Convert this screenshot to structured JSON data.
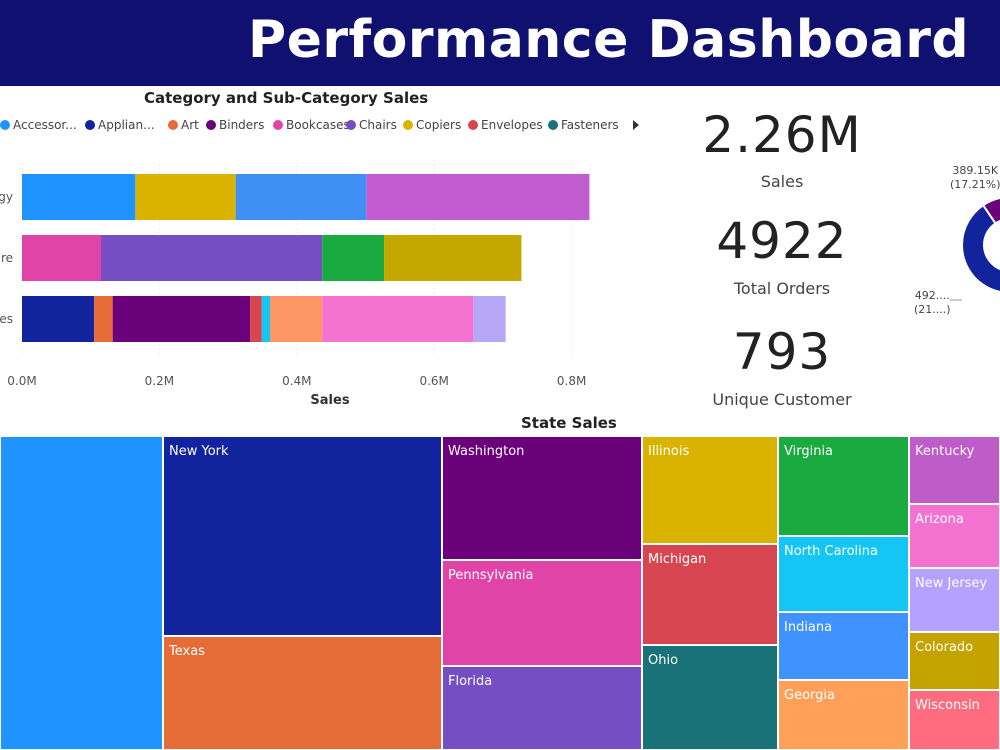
{
  "header": {
    "title": "Performance Dashboard"
  },
  "colors": {
    "header_bg": "#0f1070",
    "accessories": "#1f93ff",
    "appliances": "#12239e",
    "art": "#e66c37",
    "binders": "#6b007b",
    "bookcases": "#e044a7",
    "chairs": "#744ec2",
    "copiers": "#d9b300",
    "envelopes": "#d64550",
    "fasteners": "#197278"
  },
  "bar_panel": {
    "title": "Category and Sub-Category Sales",
    "legend": [
      {
        "label": "Accessor...",
        "color": "#1f93ff"
      },
      {
        "label": "Applian...",
        "color": "#12239e"
      },
      {
        "label": "Art",
        "color": "#e66c37"
      },
      {
        "label": "Binders",
        "color": "#6b007b"
      },
      {
        "label": "Bookcases",
        "color": "#e044a7"
      },
      {
        "label": "Chairs",
        "color": "#744ec2"
      },
      {
        "label": "Copiers",
        "color": "#d9b300"
      },
      {
        "label": "Envelopes",
        "color": "#d64550"
      },
      {
        "label": "Fasteners",
        "color": "#197278"
      }
    ]
  },
  "chart_data": [
    {
      "type": "bar",
      "orientation": "horizontal",
      "stacked": true,
      "title": "Category and Sub-Category Sales",
      "xlabel": "Sales",
      "ylabel": "",
      "xlim": [
        0,
        0.85
      ],
      "x_ticks": [
        "0.0M",
        "0.2M",
        "0.4M",
        "0.6M",
        "0.8M"
      ],
      "x_tick_values": [
        0,
        0.2,
        0.4,
        0.6,
        0.8
      ],
      "categories": [
        "gy",
        "re",
        "es"
      ],
      "bars": [
        {
          "category": "gy",
          "segments": [
            {
              "value": 0.165,
              "color": "#1f93ff"
            },
            {
              "value": 0.146,
              "color": "#d9b300"
            },
            {
              "value": 0.19,
              "color": "#3f8ff5"
            },
            {
              "value": 0.325,
              "color": "#c25cd0"
            }
          ]
        },
        {
          "category": "re",
          "segments": [
            {
              "value": 0.115,
              "color": "#e044a7"
            },
            {
              "value": 0.322,
              "color": "#744ec2"
            },
            {
              "value": 0.09,
              "color": "#1aab40"
            },
            {
              "value": 0.2,
              "color": "#c4a800"
            }
          ]
        },
        {
          "category": "es",
          "segments": [
            {
              "value": 0.105,
              "color": "#12239e"
            },
            {
              "value": 0.027,
              "color": "#e66c37"
            },
            {
              "value": 0.2,
              "color": "#6b007b"
            },
            {
              "value": 0.017,
              "color": "#d64550"
            },
            {
              "value": 0.012,
              "color": "#15c6f4"
            },
            {
              "value": 0.076,
              "color": "#fe9666"
            },
            {
              "value": 0.22,
              "color": "#f472d0"
            },
            {
              "value": 0.047,
              "color": "#b6a8f7"
            }
          ]
        }
      ]
    },
    {
      "type": "pie",
      "subtype": "donut",
      "slices": [
        {
          "label": "389.15K (17.21%)",
          "value": 17.21,
          "color": "#6b007b"
        },
        {
          "label": "492.... (21....)",
          "value": 21,
          "color": "#e66c37"
        },
        {
          "label": "",
          "value": 61.79,
          "color": "#12239e"
        }
      ],
      "annotations": [
        {
          "line1": "389.15K",
          "line2": "(17.21%)"
        },
        {
          "line1": "492....",
          "line2": "(21....)"
        }
      ]
    },
    {
      "type": "treemap",
      "title": "State Sales",
      "tiles": [
        {
          "label": "",
          "color": "#1f93ff"
        },
        {
          "label": "New York",
          "color": "#12239e"
        },
        {
          "label": "Texas",
          "color": "#e66c37"
        },
        {
          "label": "Washington",
          "color": "#6b007b"
        },
        {
          "label": "Pennsylvania",
          "color": "#e044a7"
        },
        {
          "label": "Florida",
          "color": "#744ec2"
        },
        {
          "label": "Illinois",
          "color": "#d9b300"
        },
        {
          "label": "Michigan",
          "color": "#d64550"
        },
        {
          "label": "Ohio",
          "color": "#197278"
        },
        {
          "label": "Virginia",
          "color": "#1aab40"
        },
        {
          "label": "North Carolina",
          "color": "#15c6f4"
        },
        {
          "label": "Indiana",
          "color": "#4092ff"
        },
        {
          "label": "Georgia",
          "color": "#ffa058"
        },
        {
          "label": "Kentucky",
          "color": "#be5dc9"
        },
        {
          "label": "Arizona",
          "color": "#f472d0"
        },
        {
          "label": "New Jersey",
          "color": "#b5a1ff"
        },
        {
          "label": "Colorado",
          "color": "#c4a200"
        },
        {
          "label": "Wisconsin",
          "color": "#ff6b7f"
        }
      ]
    }
  ],
  "kpis": [
    {
      "value": "2.26M",
      "label": "Sales"
    },
    {
      "value": "4922",
      "label": "Total Orders"
    },
    {
      "value": "793",
      "label": "Unique Customer"
    }
  ]
}
